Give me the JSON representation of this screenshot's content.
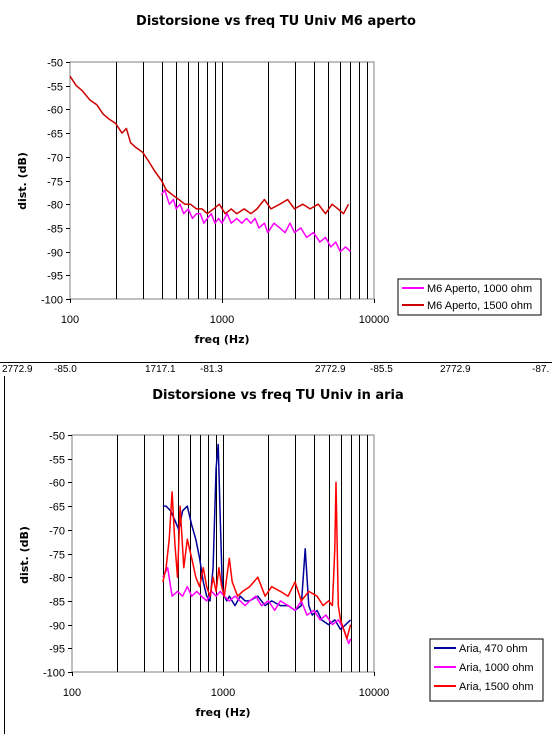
{
  "spreadsheet_row_fragments": [
    "2772.9",
    "-85.0",
    "1717.1",
    "-81.3",
    "2772.9",
    "-85.5",
    "2772.9",
    "-87."
  ],
  "chart_data": [
    {
      "type": "line",
      "title": "Distorsione vs freq TU Univ M6 aperto",
      "xlabel": "freq (Hz)",
      "ylabel": "dist. (dB)",
      "xscale": "log",
      "xlim": [
        100,
        10000
      ],
      "ylim": [
        -100,
        -50
      ],
      "x_ticks": [
        "100",
        "1000",
        "10000"
      ],
      "y_ticks": [
        "-50",
        "-55",
        "-60",
        "-65",
        "-70",
        "-75",
        "-80",
        "-85",
        "-90",
        "-95",
        "-100"
      ],
      "grid": "vertical",
      "legend": "bottom-right",
      "series": [
        {
          "name": "M6 Aperto, 1000 ohm",
          "color": "#ff00ff",
          "x": [
            400,
            420,
            450,
            480,
            500,
            530,
            560,
            600,
            640,
            680,
            720,
            760,
            800,
            850,
            900,
            950,
            1000,
            1080,
            1150,
            1250,
            1350,
            1450,
            1550,
            1650,
            1750,
            1900,
            2000,
            2200,
            2400,
            2600,
            2800,
            3000,
            3300,
            3600,
            4000,
            4400,
            4800,
            5200,
            5600,
            6000,
            6500,
            7000
          ],
          "values": [
            -78,
            -77,
            -80,
            -79,
            -81,
            -80,
            -82,
            -81,
            -83,
            -82,
            -82,
            -84,
            -83,
            -82,
            -84,
            -83,
            -84,
            -82,
            -84,
            -83,
            -84,
            -83,
            -84,
            -83,
            -85,
            -84,
            -86,
            -84,
            -85,
            -86,
            -84,
            -86,
            -85,
            -87,
            -86,
            -88,
            -87,
            -89,
            -88,
            -90,
            -89,
            -90
          ]
        },
        {
          "name": "M6 Aperto, 1500 ohm",
          "color": "#cc0000",
          "x": [
            100,
            110,
            120,
            135,
            150,
            165,
            180,
            200,
            220,
            235,
            250,
            270,
            300,
            330,
            360,
            400,
            430,
            470,
            520,
            570,
            620,
            680,
            740,
            800,
            880,
            960,
            1050,
            1150,
            1250,
            1400,
            1550,
            1700,
            1900,
            2100,
            2400,
            2700,
            3000,
            3400,
            3800,
            4300,
            4800,
            5300,
            5800,
            6300,
            6800
          ],
          "values": [
            -53,
            -55,
            -56,
            -58,
            -59,
            -61,
            -62,
            -63,
            -65,
            -64,
            -67,
            -68,
            -69,
            -71,
            -73,
            -75,
            -77,
            -78,
            -79,
            -80,
            -80,
            -81,
            -81,
            -82,
            -81,
            -80,
            -82,
            -81,
            -82,
            -81,
            -82,
            -81,
            -79,
            -81,
            -80,
            -79,
            -81,
            -80,
            -81,
            -80,
            -82,
            -80,
            -81,
            -82,
            -80
          ]
        }
      ]
    },
    {
      "type": "line",
      "title": "Distorsione vs freq TU Univ in aria",
      "xlabel": "freq (Hz)",
      "ylabel": "dist. (dB)",
      "xscale": "log",
      "xlim": [
        100,
        10000
      ],
      "ylim": [
        -100,
        -50
      ],
      "x_ticks": [
        "100",
        "1000",
        "10000"
      ],
      "y_ticks": [
        "-50",
        "-55",
        "-60",
        "-65",
        "-70",
        "-75",
        "-80",
        "-85",
        "-90",
        "-95",
        "-100"
      ],
      "grid": "vertical",
      "legend": "bottom-right",
      "series": [
        {
          "name": "Aria, 470 ohm",
          "color": "#000099",
          "x": [
            400,
            420,
            450,
            480,
            510,
            540,
            580,
            620,
            660,
            700,
            740,
            780,
            820,
            860,
            900,
            930,
            960,
            990,
            1020,
            1060,
            1100,
            1200,
            1300,
            1400,
            1500,
            1700,
            1900,
            2100,
            2400,
            2700,
            3000,
            3300,
            3500,
            3700,
            3900,
            4200,
            4500,
            5000,
            5500,
            6000,
            6500,
            7000
          ],
          "values": [
            -65,
            -65,
            -66,
            -68,
            -70,
            -66,
            -65,
            -69,
            -72,
            -76,
            -81,
            -84,
            -85,
            -78,
            -57,
            -52,
            -68,
            -82,
            -84,
            -85,
            -84,
            -86,
            -84,
            -85,
            -85,
            -84,
            -86,
            -85,
            -86,
            -86,
            -87,
            -86,
            -74,
            -86,
            -88,
            -87,
            -89,
            -90,
            -89,
            -91,
            -90,
            -89
          ]
        },
        {
          "name": "Aria, 1000 ohm",
          "color": "#ff00ff",
          "x": [
            400,
            430,
            460,
            500,
            540,
            580,
            620,
            670,
            720,
            780,
            840,
            900,
            960,
            1020,
            1100,
            1200,
            1300,
            1400,
            1500,
            1650,
            1800,
            2000,
            2200,
            2400,
            2700,
            3000,
            3300,
            3600,
            4000,
            4400,
            4800,
            5300,
            5800,
            6300,
            6800,
            7000
          ],
          "values": [
            -80,
            -78,
            -84,
            -83,
            -84,
            -82,
            -84,
            -83,
            -84,
            -85,
            -83,
            -84,
            -83,
            -84,
            -85,
            -84,
            -85,
            -86,
            -85,
            -84,
            -86,
            -85,
            -87,
            -85,
            -86,
            -87,
            -85,
            -88,
            -87,
            -89,
            -88,
            -90,
            -89,
            -91,
            -94,
            -93
          ]
        },
        {
          "name": "Aria, 1500 ohm",
          "color": "#ff0000",
          "x": [
            400,
            420,
            440,
            460,
            480,
            500,
            520,
            550,
            580,
            620,
            660,
            700,
            740,
            780,
            820,
            860,
            900,
            940,
            980,
            1020,
            1060,
            1100,
            1150,
            1250,
            1350,
            1500,
            1700,
            1900,
            2100,
            2400,
            2700,
            3000,
            3300,
            3700,
            4200,
            4600,
            5000,
            5300,
            5500,
            5600,
            5800,
            6000,
            6300,
            6600,
            7000
          ],
          "values": [
            -81,
            -78,
            -72,
            -62,
            -73,
            -80,
            -65,
            -78,
            -72,
            -76,
            -80,
            -82,
            -78,
            -82,
            -84,
            -80,
            -83,
            -78,
            -82,
            -84,
            -80,
            -76,
            -81,
            -84,
            -83,
            -82,
            -80,
            -84,
            -82,
            -83,
            -84,
            -81,
            -85,
            -83,
            -84,
            -86,
            -85,
            -86,
            -74,
            -60,
            -86,
            -89,
            -91,
            -93,
            -90
          ]
        }
      ]
    }
  ]
}
